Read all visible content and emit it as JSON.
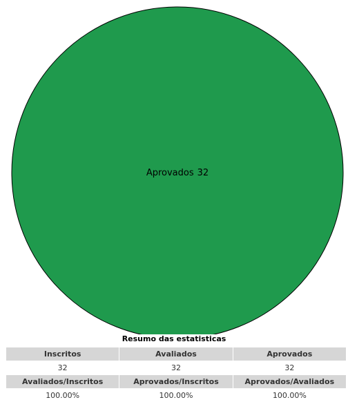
{
  "chart_data": {
    "type": "pie",
    "categories": [
      "Aprovados"
    ],
    "values": [
      32
    ],
    "colors": [
      "#1f9a4d"
    ]
  },
  "table": {
    "title": "Resumo das estatisticas",
    "rows": [
      [
        "Inscritos",
        "Avaliados",
        "Aprovados"
      ],
      [
        "32",
        "32",
        "32"
      ],
      [
        "Avaliados/Inscritos",
        "Aprovados/Inscritos",
        "Aprovados/Avaliados"
      ],
      [
        "100.00%",
        "100.00%",
        "100.00%"
      ]
    ]
  }
}
